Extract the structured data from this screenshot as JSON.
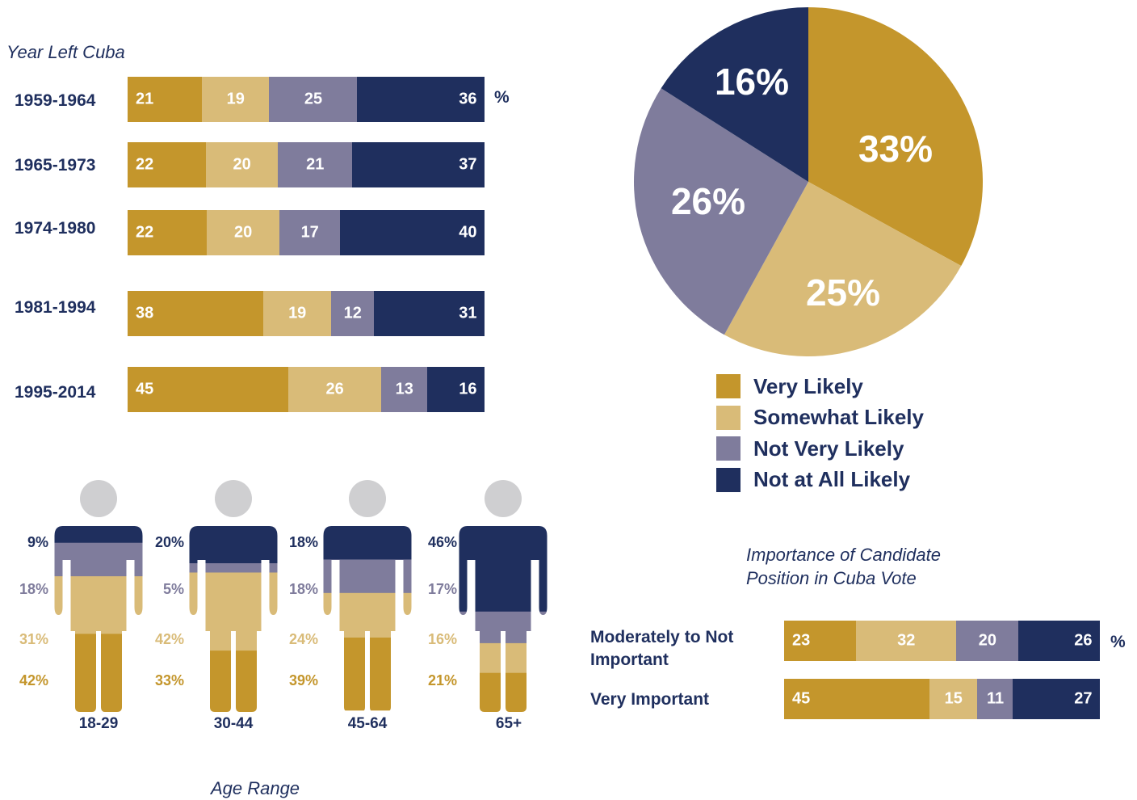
{
  "colors": {
    "very_likely": "#c4962c",
    "somewhat_likely": "#d9bb78",
    "not_very_likely": "#7f7c9c",
    "not_at_all_likely": "#1f2f5e",
    "text": "#1f2f5e",
    "head": "#cfcfd1"
  },
  "year_chart": {
    "title": "Year Left Cuba",
    "unit": "%"
  },
  "pie": {
    "legend": [
      "Very Likely",
      "Somewhat Likely",
      "Not Very Likely",
      "Not at All Likely"
    ]
  },
  "age_chart": {
    "title": "Age Range"
  },
  "importance_chart": {
    "title_line1": "Importance of Candidate",
    "title_line2": "Position in Cuba Vote",
    "unit": "%"
  },
  "chart_data": [
    {
      "type": "bar",
      "stacked": true,
      "orientation": "horizontal",
      "title": "Year Left Cuba",
      "categories": [
        "1959-1964",
        "1965-1973",
        "1974-1980",
        "1981-1994",
        "1995-2014"
      ],
      "series": [
        {
          "name": "Very Likely",
          "values": [
            21,
            22,
            22,
            38,
            45
          ]
        },
        {
          "name": "Somewhat Likely",
          "values": [
            19,
            20,
            20,
            19,
            26
          ]
        },
        {
          "name": "Not Very Likely",
          "values": [
            25,
            21,
            17,
            12,
            13
          ]
        },
        {
          "name": "Not at All Likely",
          "values": [
            36,
            37,
            40,
            31,
            16
          ]
        }
      ],
      "unit": "%"
    },
    {
      "type": "pie",
      "labels": [
        "Very Likely",
        "Somewhat Likely",
        "Not Very Likely",
        "Not at All Likely"
      ],
      "values": [
        33,
        25,
        26,
        16
      ],
      "value_labels": [
        "33%",
        "25%",
        "26%",
        "16%"
      ],
      "legend": "bottom"
    },
    {
      "type": "bar",
      "stacked": true,
      "orientation": "vertical",
      "title": "Age Range",
      "categories": [
        "18-29",
        "30-44",
        "45-64",
        "65+"
      ],
      "series": [
        {
          "name": "Not at All Likely",
          "values": [
            9,
            20,
            18,
            46
          ]
        },
        {
          "name": "Not Very Likely",
          "values": [
            18,
            5,
            18,
            17
          ]
        },
        {
          "name": "Somewhat Likely",
          "values": [
            31,
            42,
            24,
            16
          ]
        },
        {
          "name": "Very Likely",
          "values": [
            42,
            33,
            39,
            21
          ]
        }
      ],
      "value_labels": [
        [
          "9%",
          "18%",
          "31%",
          "42%"
        ],
        [
          "20%",
          "5%",
          "42%",
          "33%"
        ],
        [
          "18%",
          "18%",
          "24%",
          "39%"
        ],
        [
          "46%",
          "17%",
          "16%",
          "21%"
        ]
      ]
    },
    {
      "type": "bar",
      "stacked": true,
      "orientation": "horizontal",
      "title": "Importance of Candidate Position in Cuba Vote",
      "categories": [
        "Moderately to Not Important",
        "Very Important"
      ],
      "category_lines": [
        [
          "Moderately to Not",
          "Important"
        ],
        [
          "Very Important"
        ]
      ],
      "series": [
        {
          "name": "Very Likely",
          "values": [
            23,
            45
          ]
        },
        {
          "name": "Somewhat Likely",
          "values": [
            32,
            15
          ]
        },
        {
          "name": "Not Very Likely",
          "values": [
            20,
            11
          ]
        },
        {
          "name": "Not at All Likely",
          "values": [
            26,
            27
          ]
        }
      ],
      "unit": "%"
    }
  ]
}
